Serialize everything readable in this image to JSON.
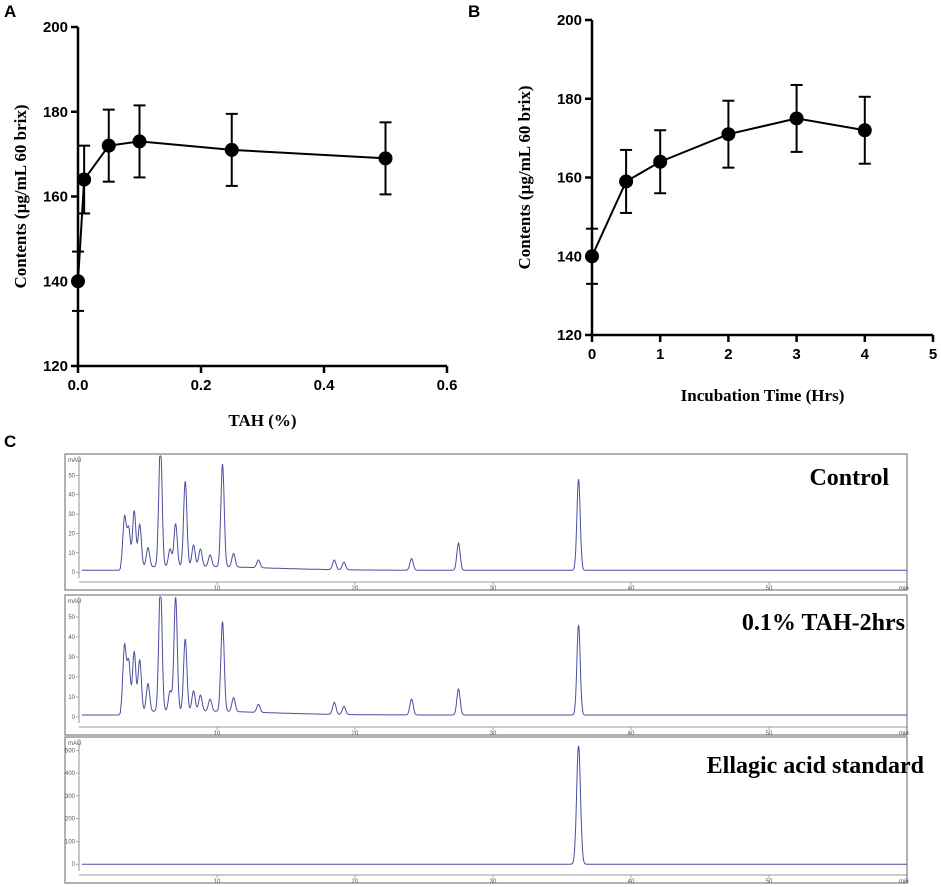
{
  "panels": {
    "a": "A",
    "b": "B",
    "c": "C"
  },
  "chart_data": [
    {
      "type": "line",
      "panel": "A",
      "title": "",
      "xlabel": "TAH (%)",
      "ylabel": "Contents (µg/mL 60 brix)",
      "xlim": [
        0,
        0.6
      ],
      "ylim": [
        120,
        200
      ],
      "xticks": [
        0,
        0.2,
        0.4,
        0.6
      ],
      "xtick_labels": [
        "0.0",
        "0.2",
        "0.4",
        "0.6"
      ],
      "yticks": [
        120,
        140,
        160,
        180,
        200
      ],
      "ytick_labels": [
        "120",
        "140",
        "160",
        "180",
        "200"
      ],
      "series": [
        {
          "name": "Contents",
          "x": [
            0,
            0.01,
            0.05,
            0.1,
            0.25,
            0.5
          ],
          "y": [
            140,
            164,
            172,
            173,
            171,
            169
          ],
          "error": [
            7,
            8,
            8.5,
            8.5,
            8.5,
            8.5
          ]
        }
      ]
    },
    {
      "type": "line",
      "panel": "B",
      "title": "",
      "xlabel": "Incubation Time (Hrs)",
      "ylabel": "Contents (µg/mL 60 brix)",
      "xlim": [
        0,
        5
      ],
      "ylim": [
        120,
        200
      ],
      "xticks": [
        0,
        1,
        2,
        3,
        4,
        5
      ],
      "xtick_labels": [
        "0",
        "1",
        "2",
        "3",
        "4",
        "5"
      ],
      "yticks": [
        120,
        140,
        160,
        180,
        200
      ],
      "ytick_labels": [
        "120",
        "140",
        "160",
        "180",
        "200"
      ],
      "series": [
        {
          "name": "Contents",
          "x": [
            0,
            0.5,
            1,
            2,
            3,
            4
          ],
          "y": [
            140,
            159,
            164,
            171,
            175,
            172
          ],
          "error": [
            7,
            8,
            8,
            8.5,
            8.5,
            8.5
          ]
        }
      ]
    },
    {
      "type": "line",
      "panel": "C",
      "title": "Control",
      "xlabel": "min",
      "ylabel": "mAU",
      "xlim": [
        0,
        60
      ],
      "ylim": [
        -3,
        60
      ],
      "xticks": [
        10,
        20,
        30,
        40,
        50
      ],
      "xtick_labels": [
        "10",
        "20",
        "30",
        "40",
        "50"
      ],
      "yticks": [
        0,
        10,
        20,
        30,
        40,
        50,
        60
      ],
      "ytick_labels": [
        "0",
        "10",
        "20",
        "30",
        "40",
        "50",
        "60"
      ],
      "baseline": 1,
      "peaks": [
        {
          "t": 3.3,
          "h": 26
        },
        {
          "t": 3.6,
          "h": 20
        },
        {
          "t": 4.0,
          "h": 29
        },
        {
          "t": 4.4,
          "h": 22
        },
        {
          "t": 5.0,
          "h": 10
        },
        {
          "t": 5.9,
          "h": 64
        },
        {
          "t": 6.6,
          "h": 9
        },
        {
          "t": 7.0,
          "h": 22
        },
        {
          "t": 7.7,
          "h": 44
        },
        {
          "t": 8.3,
          "h": 11
        },
        {
          "t": 8.8,
          "h": 9
        },
        {
          "t": 9.5,
          "h": 6
        },
        {
          "t": 10.4,
          "h": 53
        },
        {
          "t": 11.2,
          "h": 7
        },
        {
          "t": 13.0,
          "h": 4
        },
        {
          "t": 18.5,
          "h": 5
        },
        {
          "t": 19.2,
          "h": 4
        },
        {
          "t": 24.1,
          "h": 6
        },
        {
          "t": 27.5,
          "h": 14
        },
        {
          "t": 36.2,
          "h": 47
        }
      ]
    },
    {
      "type": "line",
      "panel": "C",
      "title": "0.1% TAH-2hrs",
      "xlabel": "min",
      "ylabel": "mAU",
      "xlim": [
        0,
        60
      ],
      "ylim": [
        -3,
        60
      ],
      "xticks": [
        10,
        20,
        30,
        40,
        50
      ],
      "xtick_labels": [
        "10",
        "20",
        "30",
        "40",
        "50"
      ],
      "yticks": [
        0,
        10,
        20,
        30,
        40,
        50,
        60
      ],
      "ytick_labels": [
        "0",
        "10",
        "20",
        "30",
        "40",
        "50",
        "60"
      ],
      "baseline": 1,
      "peaks": [
        {
          "t": 3.3,
          "h": 33
        },
        {
          "t": 3.6,
          "h": 25
        },
        {
          "t": 4.0,
          "h": 30
        },
        {
          "t": 4.4,
          "h": 26
        },
        {
          "t": 5.0,
          "h": 14
        },
        {
          "t": 5.9,
          "h": 64
        },
        {
          "t": 6.6,
          "h": 10
        },
        {
          "t": 7.0,
          "h": 57
        },
        {
          "t": 7.7,
          "h": 36
        },
        {
          "t": 8.3,
          "h": 10
        },
        {
          "t": 8.8,
          "h": 8
        },
        {
          "t": 9.5,
          "h": 6
        },
        {
          "t": 10.4,
          "h": 45
        },
        {
          "t": 11.2,
          "h": 7
        },
        {
          "t": 13.0,
          "h": 4
        },
        {
          "t": 18.5,
          "h": 6
        },
        {
          "t": 19.2,
          "h": 4
        },
        {
          "t": 24.1,
          "h": 8
        },
        {
          "t": 27.5,
          "h": 13
        },
        {
          "t": 36.2,
          "h": 45
        }
      ]
    },
    {
      "type": "line",
      "panel": "C",
      "title": "Ellagic acid standard",
      "xlabel": "min",
      "ylabel": "mAU",
      "xlim": [
        0,
        60
      ],
      "ylim": [
        -30,
        550
      ],
      "xticks": [
        10,
        20,
        30,
        40,
        50
      ],
      "xtick_labels": [
        "10",
        "20",
        "30",
        "40",
        "50"
      ],
      "yticks": [
        0,
        100,
        200,
        300,
        400,
        500
      ],
      "ytick_labels": [
        "0",
        "100",
        "200",
        "300",
        "400",
        "500"
      ],
      "baseline": 0,
      "peaks": [
        {
          "t": 36.2,
          "h": 520
        }
      ]
    }
  ],
  "colors": {
    "axis": "#000000",
    "trace": "#4b4f9e",
    "trace_box": "#666666"
  }
}
